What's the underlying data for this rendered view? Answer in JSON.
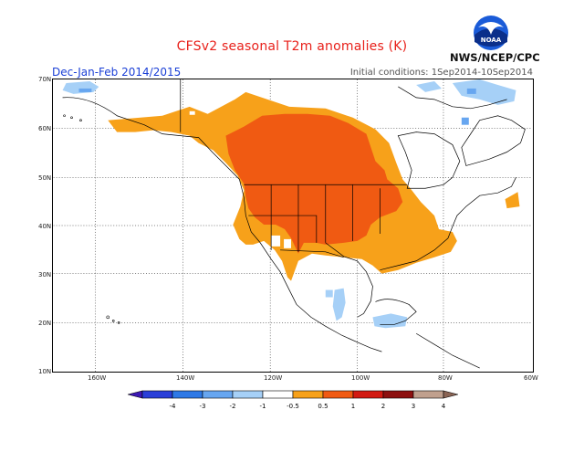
{
  "title": "CFSv2 seasonal T2m anomalies (K)",
  "period": "Dec-Jan-Feb 2014/2015",
  "initial_conditions": "Initial conditions: 1Sep2014-10Sep2014",
  "agency": "NWS/NCEP/CPC",
  "logo_text": "NOAA",
  "lat_labels": [
    "70N",
    "60N",
    "50N",
    "40N",
    "30N",
    "20N",
    "10N"
  ],
  "lon_labels": [
    "160W",
    "140W",
    "120W",
    "100W",
    "80W",
    "60W"
  ],
  "colorbar": {
    "labels": [
      "-4",
      "-3",
      "-2",
      "-1",
      "-0.5",
      "0.5",
      "1",
      "2",
      "3",
      "4"
    ],
    "colors": [
      "#3d18b4",
      "#2a3fd8",
      "#2e79e6",
      "#67a6f0",
      "#a6d0f7",
      "#ffffff",
      "#f7a11a",
      "#f05a12",
      "#d21a12",
      "#8d1010",
      "#c0a08e",
      "#8a6454"
    ]
  }
}
